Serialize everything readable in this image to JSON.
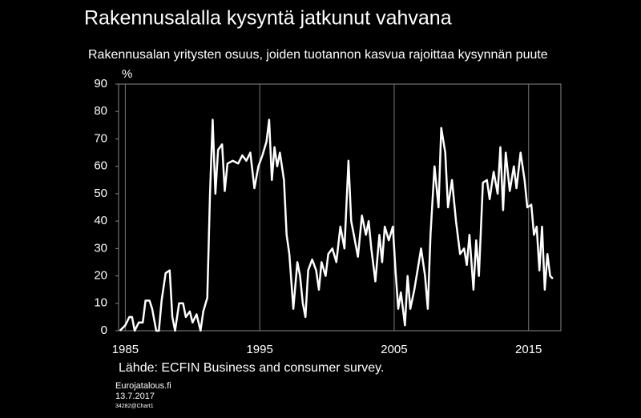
{
  "chart_data": {
    "type": "line",
    "title": "Rakennusalalla kysyntä jatkunut vahvana",
    "subtitle": "Rakennusalan yritysten osuus, joiden tuotannon kasvua rajoittaa kysynnän puute",
    "y_label": "%",
    "source": "Lähde: ECFIN Business and consumer survey.",
    "footer": [
      "Eurojatalous.fi",
      "13.7.2017",
      "34282@Chart1"
    ],
    "color": "#ffffff",
    "grid": true,
    "xlim": [
      1984.5,
      2017.4
    ],
    "xticks": [
      1985,
      1995,
      2005,
      2015
    ],
    "ylim": [
      0,
      90
    ],
    "yticks": [
      0,
      10,
      20,
      30,
      40,
      50,
      60,
      70,
      80,
      90
    ],
    "x": [
      1984.6,
      1985.0,
      1985.3,
      1985.5,
      1985.7,
      1986.0,
      1986.3,
      1986.5,
      1986.8,
      1987.0,
      1987.3,
      1987.5,
      1987.7,
      1988.0,
      1988.3,
      1988.5,
      1988.7,
      1989.0,
      1989.3,
      1989.5,
      1989.8,
      1990.0,
      1990.3,
      1990.6,
      1990.8,
      1991.1,
      1991.3,
      1991.5,
      1991.7,
      1991.9,
      1992.2,
      1992.4,
      1992.6,
      1993.0,
      1993.4,
      1993.7,
      1994.0,
      1994.3,
      1994.6,
      1994.9,
      1995.2,
      1995.5,
      1995.7,
      1995.9,
      1996.1,
      1996.3,
      1996.5,
      1996.8,
      1997.0,
      1997.2,
      1997.5,
      1997.8,
      1998.0,
      1998.2,
      1998.4,
      1998.6,
      1998.9,
      1999.2,
      1999.4,
      1999.6,
      1999.9,
      2000.1,
      2000.4,
      2000.7,
      2001.0,
      2001.3,
      2001.6,
      2001.8,
      2002.0,
      2002.3,
      2002.6,
      2002.9,
      2003.1,
      2003.3,
      2003.6,
      2003.9,
      2004.1,
      2004.3,
      2004.6,
      2004.9,
      2005.1,
      2005.3,
      2005.5,
      2005.8,
      2006.0,
      2006.2,
      2006.5,
      2006.8,
      2007.0,
      2007.3,
      2007.5,
      2007.7,
      2008.0,
      2008.3,
      2008.5,
      2008.8,
      2009.0,
      2009.3,
      2009.6,
      2009.9,
      2010.2,
      2010.4,
      2010.6,
      2010.9,
      2011.1,
      2011.3,
      2011.6,
      2011.9,
      2012.1,
      2012.4,
      2012.7,
      2012.9,
      2013.1,
      2013.3,
      2013.6,
      2013.9,
      2014.1,
      2014.4,
      2014.7,
      2014.9,
      2015.2,
      2015.4,
      2015.6,
      2015.8,
      2016.0,
      2016.2,
      2016.4,
      2016.6,
      2016.8
    ],
    "values": [
      0,
      2,
      5,
      5,
      0,
      3,
      3,
      11,
      11,
      8,
      0,
      0,
      11,
      21,
      22,
      5,
      0,
      10,
      10,
      5,
      7,
      3,
      6,
      0,
      7,
      12,
      50,
      77,
      50,
      66,
      68,
      51,
      61,
      62,
      61,
      64,
      62,
      65,
      52,
      60,
      64,
      69,
      77,
      55,
      67,
      60,
      65,
      55,
      35,
      28,
      8,
      25,
      20,
      10,
      5,
      22,
      26,
      22,
      15,
      25,
      20,
      28,
      30,
      25,
      38,
      30,
      62,
      40,
      35,
      27,
      42,
      35,
      40,
      30,
      18,
      35,
      25,
      38,
      33,
      38,
      22,
      8,
      14,
      2,
      20,
      8,
      15,
      24,
      30,
      20,
      8,
      35,
      60,
      45,
      74,
      65,
      45,
      55,
      40,
      28,
      30,
      24,
      35,
      15,
      33,
      20,
      54,
      55,
      48,
      58,
      50,
      67,
      44,
      65,
      51,
      60,
      52,
      65,
      55,
      45,
      46,
      35,
      38,
      22,
      38,
      15,
      28,
      20,
      19
    ]
  }
}
